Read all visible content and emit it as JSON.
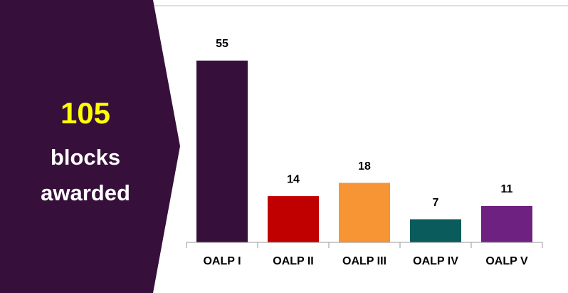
{
  "callout": {
    "number": "105",
    "lines": [
      "blocks",
      "awarded"
    ]
  },
  "chart_data": {
    "type": "bar",
    "categories": [
      "OALP I",
      "OALP II",
      "OALP III",
      "OALP IV",
      "OALP V"
    ],
    "values": [
      55,
      14,
      18,
      7,
      11
    ],
    "colors": [
      "#36103a",
      "#c00000",
      "#f79433",
      "#0a5c5c",
      "#6f2181"
    ],
    "ylim": [
      0,
      55
    ]
  }
}
